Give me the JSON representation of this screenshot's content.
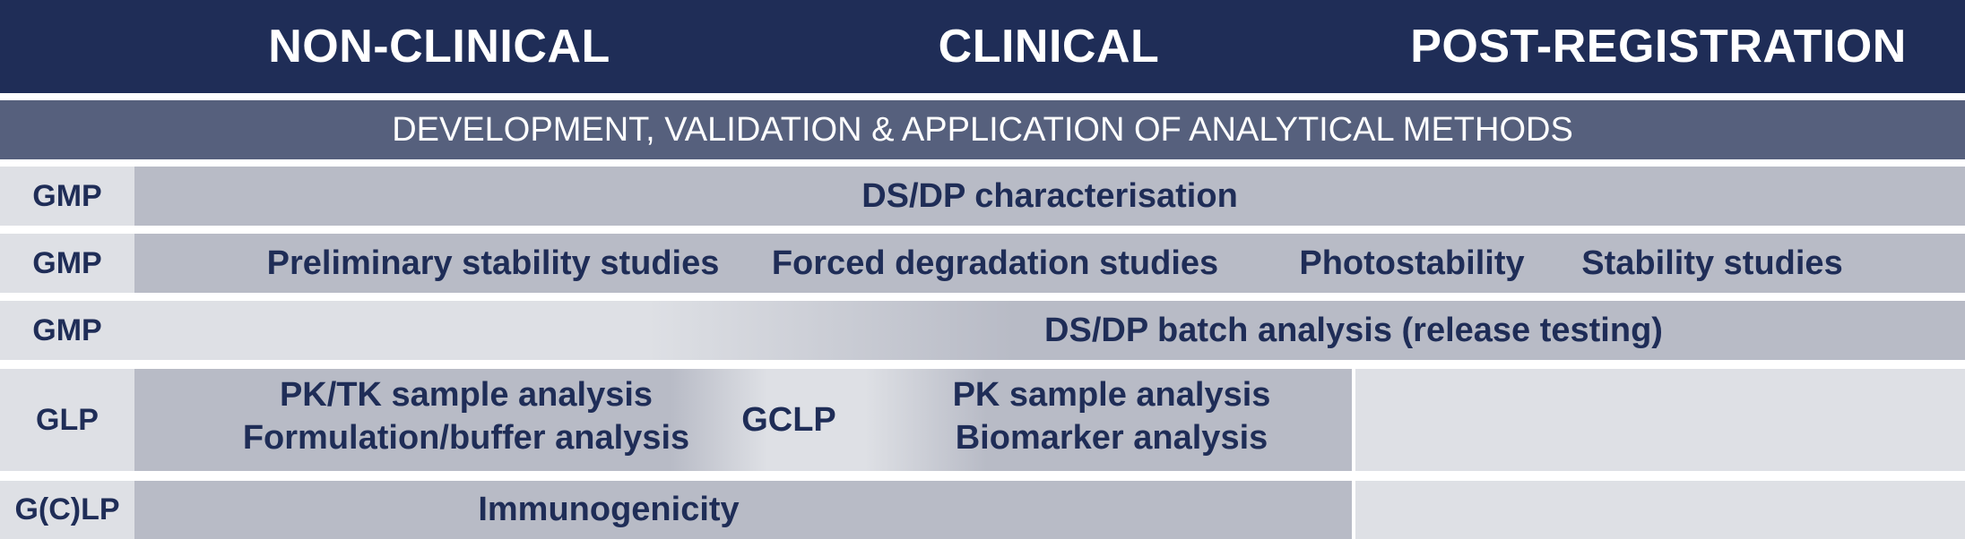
{
  "header": {
    "phases": [
      "NON-CLINICAL",
      "CLINICAL",
      "POST-REGISTRATION"
    ]
  },
  "methods_bar": "DEVELOPMENT, VALIDATION & APPLICATION OF ANALYTICAL METHODS",
  "rows": [
    {
      "label": "GMP",
      "items": [
        "DS/DP characterisation"
      ]
    },
    {
      "label": "GMP",
      "items": [
        "Preliminary stability studies",
        "Forced degradation studies",
        "Photostability",
        "Stability studies"
      ]
    },
    {
      "label": "GMP",
      "items": [
        "DS/DP batch analysis (release testing)"
      ]
    },
    {
      "label": "GLP",
      "items": [
        "PK/TK sample analysis",
        "Formulation/buffer analysis"
      ],
      "sublabel": "GCLP",
      "subitems": [
        "PK sample analysis",
        "Biomarker analysis"
      ]
    },
    {
      "label": "G(C)LP",
      "items": [
        "Immunogenicity"
      ]
    }
  ],
  "colors": {
    "navy": "#1f2d57",
    "slate": "#56607d",
    "bar_grey": "#b8bbc6",
    "light_grey": "#dee0e5",
    "white": "#ffffff"
  }
}
